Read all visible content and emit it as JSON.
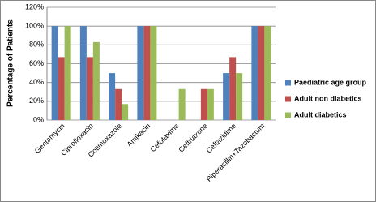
{
  "chart_data": {
    "type": "bar",
    "y_label": "Percentage of Patients",
    "categories": [
      "Gentamycin",
      "Ciprofloxacin",
      "Cotimoxazole",
      "Amikacin",
      "Cefotaxime",
      "Ceftriaxone",
      "Ceftazidime",
      "Piperacillin+Tazobactum"
    ],
    "series": [
      {
        "name": "Paediatric age group",
        "color": "#4f81bd",
        "values": [
          100,
          100,
          50,
          100,
          0,
          0,
          50,
          100
        ]
      },
      {
        "name": "Adult non diabetics",
        "color": "#c0504d",
        "values": [
          67,
          67,
          33,
          100,
          0,
          33,
          67,
          100
        ]
      },
      {
        "name": "Adult diabetics",
        "color": "#9bbb59",
        "values": [
          100,
          83,
          17,
          100,
          33,
          33,
          50,
          100
        ]
      }
    ],
    "ylim": [
      0,
      120
    ],
    "yticks": [
      {
        "value": 0,
        "label": "0%"
      },
      {
        "value": 20,
        "label": "20%"
      },
      {
        "value": 40,
        "label": "40%"
      },
      {
        "value": 60,
        "label": "60%"
      },
      {
        "value": 80,
        "label": "80%"
      },
      {
        "value": 100,
        "label": "100%"
      },
      {
        "value": 120,
        "label": "120%"
      }
    ],
    "grid": true,
    "legend": "right"
  }
}
